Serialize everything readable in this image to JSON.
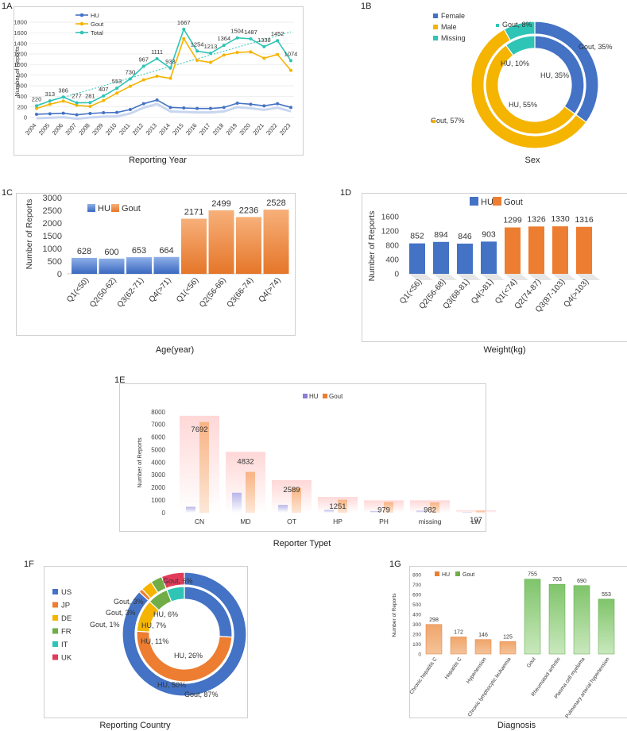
{
  "panels": {
    "a": {
      "label": "1A",
      "caption": "Reporting Year"
    },
    "b": {
      "label": "1B",
      "caption": "Sex"
    },
    "c": {
      "label": "1C",
      "caption": "Age(year)"
    },
    "d": {
      "label": "1D",
      "caption": "Weight(kg)"
    },
    "e": {
      "label": "1E",
      "caption": "Reporter Typet"
    },
    "f": {
      "label": "1F",
      "caption": "Reporting Country"
    },
    "g": {
      "label": "1G",
      "caption": "Diagnosis"
    }
  },
  "colors": {
    "hu": "#4472c4",
    "gout": "#f4b400",
    "total": "#2ec4b6",
    "orange": "#ed7d31",
    "green": "#70ad47",
    "red": "#e03c5a"
  },
  "chart_data": [
    {
      "id": "1A",
      "type": "line",
      "title": "",
      "xlabel": "Reporting Year",
      "ylabel": "Number of Reports",
      "ylim": [
        0,
        1800
      ],
      "yticks": [
        0,
        200,
        400,
        600,
        800,
        1000,
        1200,
        1400,
        1600,
        1800
      ],
      "x": [
        "2004",
        "2005",
        "2006",
        "2007",
        "2008",
        "2009",
        "2010",
        "2011",
        "2012",
        "2013",
        "2014",
        "2015",
        "2016",
        "2017",
        "2018",
        "2019",
        "2020",
        "2021",
        "2022",
        "2023"
      ],
      "series": [
        {
          "name": "HU",
          "values": [
            60,
            70,
            80,
            50,
            75,
            90,
            95,
            150,
            260,
            330,
            190,
            180,
            170,
            170,
            190,
            270,
            250,
            220,
            260,
            190
          ]
        },
        {
          "name": "Gout",
          "values": [
            170,
            250,
            310,
            230,
            210,
            320,
            460,
            590,
            710,
            780,
            740,
            1490,
            1080,
            1040,
            1180,
            1230,
            1240,
            1120,
            1190,
            890
          ]
        },
        {
          "name": "Total",
          "values": [
            220,
            313,
            386,
            277,
            281,
            407,
            553,
            730,
            967,
            1111,
            933,
            1667,
            1254,
            1213,
            1364,
            1504,
            1487,
            1338,
            1452,
            1074
          ]
        }
      ],
      "total_labels": [
        "220",
        "313",
        "386",
        "277",
        "281",
        "407",
        "553",
        "730",
        "967",
        "1111",
        "933",
        "1667",
        "1254",
        "1213",
        "1364",
        "1504",
        "1487",
        "1338",
        "1452",
        "1074"
      ],
      "legend": [
        "HU",
        "Gout",
        "Total"
      ]
    },
    {
      "id": "1B",
      "type": "pie",
      "xlabel": "Sex",
      "legend": [
        "Female",
        "Male",
        "Missing"
      ],
      "outer": [
        {
          "name": "Female",
          "pct": 35,
          "label": "Gout, 35%"
        },
        {
          "name": "Male",
          "pct": 57,
          "label": "Gout, 57%"
        },
        {
          "name": "Missing",
          "pct": 8,
          "label": "Gout, 8%"
        }
      ],
      "inner": [
        {
          "name": "Female",
          "pct": 35,
          "label": "HU, 35%"
        },
        {
          "name": "Male",
          "pct": 55,
          "label": "HU, 55%"
        },
        {
          "name": "Missing",
          "pct": 10,
          "label": "HU, 10%"
        }
      ]
    },
    {
      "id": "1C",
      "type": "bar",
      "xlabel": "Age(year)",
      "ylabel": "Number of Reports",
      "ylim": [
        0,
        3000
      ],
      "yticks": [
        0,
        500,
        1000,
        1500,
        2000,
        2500,
        3000
      ],
      "legend": [
        "HU",
        "Gout"
      ],
      "categories": [
        "Q1(<50)",
        "Q2(50-62)",
        "Q3(62-71)",
        "Q4(>71)",
        "Q1(<56)",
        "Q2(56-66)",
        "Q3(66-74)",
        "Q4(>74)"
      ],
      "groups": [
        "HU",
        "HU",
        "HU",
        "HU",
        "Gout",
        "Gout",
        "Gout",
        "Gout"
      ],
      "values": [
        628,
        600,
        653,
        664,
        2171,
        2499,
        2236,
        2528
      ]
    },
    {
      "id": "1D",
      "type": "bar",
      "xlabel": "Weight(kg)",
      "ylabel": "Number of Reports",
      "ylim": [
        0,
        1600
      ],
      "yticks": [
        0,
        400,
        800,
        1200,
        1600
      ],
      "legend": [
        "HU",
        "Gout"
      ],
      "categories": [
        "Q1(<56)",
        "Q2(56-68)",
        "Q3(68-81)",
        "Q4(>81)",
        "Q1(<74)",
        "Q2(74-87)",
        "Q3(87-103)",
        "Q4(>103)"
      ],
      "groups": [
        "HU",
        "HU",
        "HU",
        "HU",
        "Gout",
        "Gout",
        "Gout",
        "Gout"
      ],
      "values": [
        852,
        894,
        846,
        903,
        1299,
        1326,
        1330,
        1316
      ]
    },
    {
      "id": "1E",
      "type": "bar",
      "xlabel": "Reporter Typet",
      "ylabel": "Number of Reports",
      "ylim": [
        0,
        8000
      ],
      "yticks": [
        0,
        1000,
        2000,
        3000,
        4000,
        5000,
        6000,
        7000,
        8000
      ],
      "legend": [
        "HU",
        "Gout"
      ],
      "categories": [
        "CN",
        "MD",
        "OT",
        "HP",
        "PH",
        "missing",
        "LW"
      ],
      "series": [
        {
          "name": "HU",
          "values": [
            470,
            1590,
            620,
            220,
            130,
            160,
            45
          ]
        },
        {
          "name": "Gout",
          "values": [
            7200,
            3240,
            1970,
            1030,
            850,
            820,
            152
          ]
        }
      ],
      "total_labels": [
        "7692",
        "4832",
        "2589",
        "1251",
        "979",
        "982",
        "197"
      ],
      "totals": [
        7692,
        4832,
        2589,
        1251,
        979,
        982,
        197
      ]
    },
    {
      "id": "1F",
      "type": "pie",
      "xlabel": "Reporting Country",
      "legend": [
        "US",
        "JP",
        "DE",
        "FR",
        "IT",
        "UK"
      ],
      "outer": [
        {
          "name": "US",
          "pct": 87,
          "label": "Gout, 87%"
        },
        {
          "name": "JP",
          "pct": 1,
          "label": "Gout, 1%"
        },
        {
          "name": "DE",
          "pct": 3,
          "label": "Gout, 3%"
        },
        {
          "name": "FR",
          "pct": 3,
          "label": "Gout, 3%"
        },
        {
          "name": "IT",
          "pct": 0,
          "label": ""
        },
        {
          "name": "UK",
          "pct": 6,
          "label": "Gout, 6%"
        }
      ],
      "inner": [
        {
          "name": "US",
          "pct": 26,
          "label": "HU, 26%"
        },
        {
          "name": "JP",
          "pct": 50,
          "label": "HU, 50%"
        },
        {
          "name": "DE",
          "pct": 11,
          "label": "HU, 11%"
        },
        {
          "name": "FR",
          "pct": 7,
          "label": "HU, 7%"
        },
        {
          "name": "IT",
          "pct": 6,
          "label": "HU, 6%"
        },
        {
          "name": "UK",
          "pct": 0,
          "label": ""
        }
      ]
    },
    {
      "id": "1G",
      "type": "bar",
      "xlabel": "Diagnosis",
      "ylabel": "Number of Reports",
      "ylim": [
        0,
        800
      ],
      "yticks": [
        0,
        100,
        200,
        300,
        400,
        500,
        600,
        700,
        800
      ],
      "legend": [
        "HU",
        "Gout"
      ],
      "categories": [
        "Chronic hepatitis C",
        "Hepatitis C",
        "Hypertension",
        "Chronic lymphocytic leukaemia",
        "Gout",
        "Rheumatoid arthritis",
        "Plasma cell myeloma",
        "Pulmonary arterial hypertension"
      ],
      "groups": [
        "HU",
        "HU",
        "HU",
        "HU",
        "Gout",
        "Gout",
        "Gout",
        "Gout"
      ],
      "values": [
        298,
        172,
        146,
        125,
        755,
        703,
        690,
        553
      ]
    }
  ]
}
